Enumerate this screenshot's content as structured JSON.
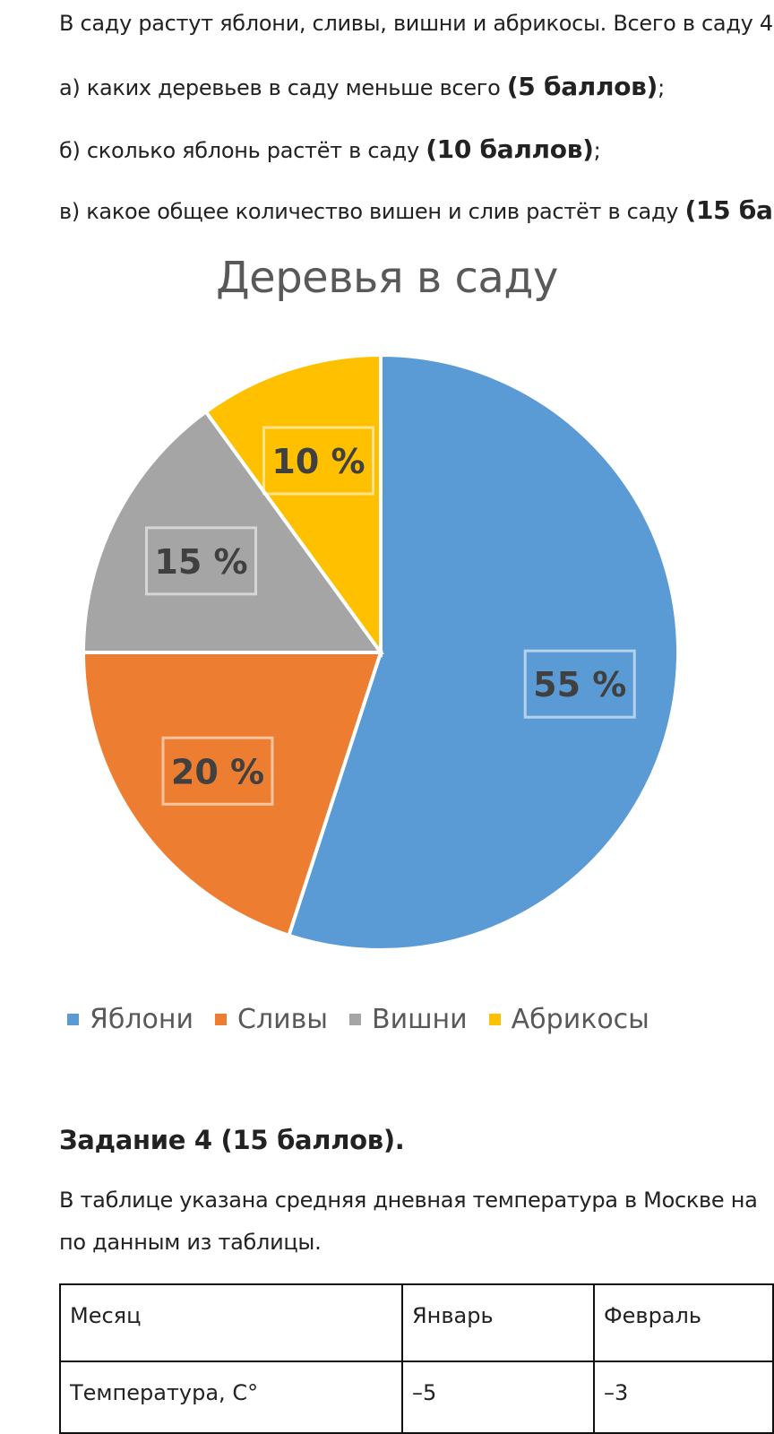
{
  "task3": {
    "intro": "В саду растут яблони, сливы, вишни и абрикосы. Всего в саду 4",
    "q_a_text": "а) каких деревьев в саду меньше всего ",
    "q_a_points": "(5 баллов)",
    "q_a_end": ";",
    "q_b_text": "б) сколько яблонь растёт в саду ",
    "q_b_points": "(10 баллов)",
    "q_b_end": ";",
    "q_c_text": "в) какое общее количество вишен и слив растёт в саду ",
    "q_c_points": "(15 ба"
  },
  "chart_data": {
    "type": "pie",
    "title": "Деревья в саду",
    "categories": [
      "Яблони",
      "Сливы",
      "Вишни",
      "Абрикосы"
    ],
    "values": [
      55,
      20,
      15,
      10
    ],
    "labels": [
      "55 %",
      "20 %",
      "15 %",
      "10 %"
    ],
    "colors": [
      "#5b9bd5",
      "#ed7d31",
      "#a5a5a5",
      "#ffc000"
    ],
    "legend": "bottom"
  },
  "task4": {
    "heading": "Задание 4 (15 баллов).",
    "text_line1": "В таблице указана средняя дневная температура в Москве на",
    "text_line2": "по данным из таблицы.",
    "table": {
      "row1": [
        "Месяц",
        "Январь",
        "Февраль"
      ],
      "row2": [
        "Температура, С°",
        "–5",
        "–3"
      ]
    }
  }
}
